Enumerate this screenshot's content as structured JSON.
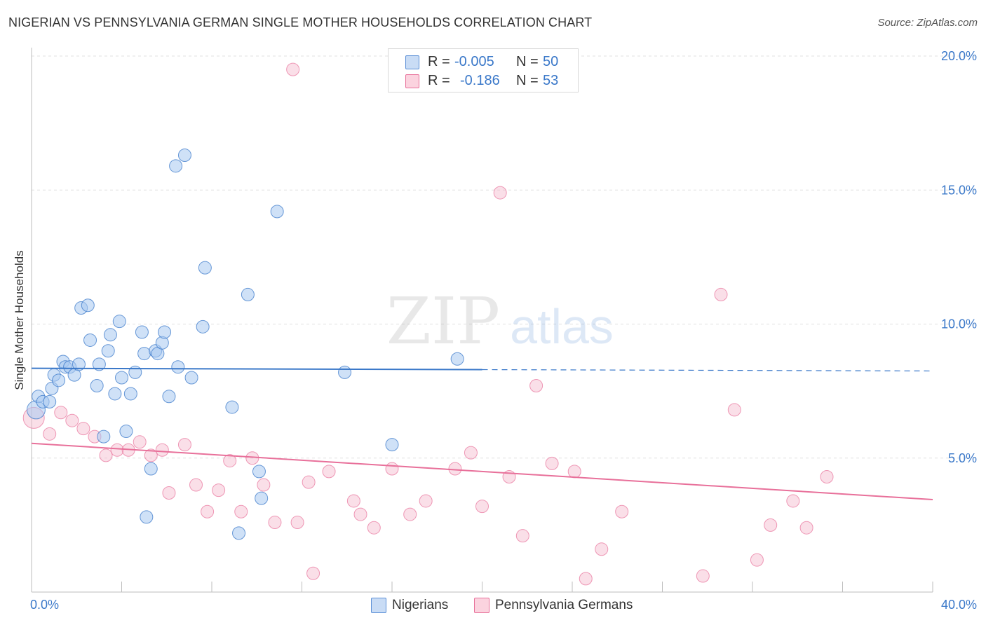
{
  "header": {
    "title": "NIGERIAN VS PENNSYLVANIA GERMAN SINGLE MOTHER HOUSEHOLDS CORRELATION CHART",
    "source": "Source: ZipAtlas.com"
  },
  "watermark": {
    "part1": "ZIP",
    "part2": "atlas"
  },
  "legend": {
    "rows": [
      {
        "r_label": "R =",
        "r_value": "-0.005",
        "n_label": "N =",
        "n_value": "50",
        "color": "#a8c8f0"
      },
      {
        "r_label": "R =",
        "r_value": "-0.186",
        "n_label": "N =",
        "n_value": "53",
        "color": "#f5b8cb"
      }
    ]
  },
  "bottom_legend": [
    {
      "label": "Nigerians",
      "color": "#a8c8f0"
    },
    {
      "label": "Pennsylvania Germans",
      "color": "#f5b8cb"
    }
  ],
  "chart_data": {
    "type": "scatter",
    "title": "NIGERIAN VS PENNSYLVANIA GERMAN SINGLE MOTHER HOUSEHOLDS CORRELATION CHART",
    "xlabel": "",
    "ylabel": "Single Mother Households",
    "xlim": [
      0,
      40
    ],
    "ylim": [
      0,
      20
    ],
    "x_tick_labels": [
      "0.0%",
      "40.0%"
    ],
    "y_ticks": [
      5,
      10,
      15,
      20
    ],
    "y_tick_labels": [
      "5.0%",
      "10.0%",
      "15.0%",
      "20.0%"
    ],
    "grid": true,
    "colors": {
      "nigerians_fill": "#a8c8f0",
      "nigerians_line": "#3a78c9",
      "penn_fill": "#f5b8cb",
      "penn_line": "#e8709a",
      "axis_text": "#3a78c9",
      "grid": "#e0e0e0"
    },
    "series": [
      {
        "name": "Nigerians",
        "trend": {
          "x0": 0,
          "y0": 8.35,
          "x1": 40,
          "y1": 8.25,
          "solid_until": 20
        },
        "points": [
          [
            0.2,
            6.8
          ],
          [
            0.3,
            7.3
          ],
          [
            0.5,
            7.1
          ],
          [
            0.8,
            7.1
          ],
          [
            0.9,
            7.6
          ],
          [
            1.0,
            8.1
          ],
          [
            1.2,
            7.9
          ],
          [
            1.4,
            8.6
          ],
          [
            1.5,
            8.4
          ],
          [
            1.7,
            8.4
          ],
          [
            1.9,
            8.1
          ],
          [
            2.1,
            8.5
          ],
          [
            2.2,
            10.6
          ],
          [
            2.5,
            10.7
          ],
          [
            2.6,
            9.4
          ],
          [
            2.9,
            7.7
          ],
          [
            3.0,
            8.5
          ],
          [
            3.2,
            5.8
          ],
          [
            3.4,
            9.0
          ],
          [
            3.5,
            9.6
          ],
          [
            3.7,
            7.4
          ],
          [
            3.9,
            10.1
          ],
          [
            4.0,
            8.0
          ],
          [
            4.2,
            6.0
          ],
          [
            4.4,
            7.4
          ],
          [
            4.6,
            8.2
          ],
          [
            4.9,
            9.7
          ],
          [
            5.0,
            8.9
          ],
          [
            5.1,
            2.8
          ],
          [
            5.3,
            4.6
          ],
          [
            5.5,
            9.0
          ],
          [
            5.6,
            8.9
          ],
          [
            5.8,
            9.3
          ],
          [
            5.9,
            9.7
          ],
          [
            6.1,
            7.3
          ],
          [
            6.4,
            15.9
          ],
          [
            6.5,
            8.4
          ],
          [
            6.8,
            16.3
          ],
          [
            7.1,
            8.0
          ],
          [
            7.6,
            9.9
          ],
          [
            7.7,
            12.1
          ],
          [
            8.9,
            6.9
          ],
          [
            9.2,
            2.2
          ],
          [
            9.6,
            11.1
          ],
          [
            10.1,
            4.5
          ],
          [
            10.2,
            3.5
          ],
          [
            10.9,
            14.2
          ],
          [
            13.9,
            8.2
          ],
          [
            16.0,
            5.5
          ],
          [
            18.9,
            8.7
          ]
        ]
      },
      {
        "name": "Pennsylvania Germans",
        "trend": {
          "x0": 0,
          "y0": 5.55,
          "x1": 40,
          "y1": 3.45
        },
        "points": [
          [
            0.1,
            6.5
          ],
          [
            0.8,
            5.9
          ],
          [
            1.3,
            6.7
          ],
          [
            1.8,
            6.4
          ],
          [
            2.3,
            6.1
          ],
          [
            2.8,
            5.8
          ],
          [
            3.3,
            5.1
          ],
          [
            3.8,
            5.3
          ],
          [
            4.3,
            5.3
          ],
          [
            4.8,
            5.6
          ],
          [
            5.3,
            5.1
          ],
          [
            5.8,
            5.3
          ],
          [
            6.1,
            3.7
          ],
          [
            6.8,
            5.5
          ],
          [
            7.3,
            4.0
          ],
          [
            7.8,
            3.0
          ],
          [
            8.3,
            3.8
          ],
          [
            8.8,
            4.9
          ],
          [
            9.3,
            3.0
          ],
          [
            9.8,
            5.0
          ],
          [
            10.3,
            4.0
          ],
          [
            10.8,
            2.6
          ],
          [
            11.6,
            19.5
          ],
          [
            11.8,
            2.6
          ],
          [
            12.5,
            0.7
          ],
          [
            12.3,
            4.1
          ],
          [
            13.2,
            4.5
          ],
          [
            14.3,
            3.4
          ],
          [
            14.6,
            2.9
          ],
          [
            15.2,
            2.4
          ],
          [
            16.0,
            4.6
          ],
          [
            16.8,
            2.9
          ],
          [
            17.5,
            3.4
          ],
          [
            18.8,
            4.6
          ],
          [
            19.5,
            5.2
          ],
          [
            20.0,
            3.2
          ],
          [
            20.8,
            14.9
          ],
          [
            21.2,
            4.3
          ],
          [
            21.8,
            2.1
          ],
          [
            22.4,
            7.7
          ],
          [
            23.1,
            4.8
          ],
          [
            24.1,
            4.5
          ],
          [
            24.6,
            0.5
          ],
          [
            25.3,
            1.6
          ],
          [
            26.2,
            3.0
          ],
          [
            29.8,
            0.6
          ],
          [
            30.6,
            11.1
          ],
          [
            31.2,
            6.8
          ],
          [
            32.2,
            1.2
          ],
          [
            32.8,
            2.5
          ],
          [
            33.8,
            3.4
          ],
          [
            34.4,
            2.4
          ],
          [
            35.3,
            4.3
          ]
        ]
      }
    ]
  }
}
